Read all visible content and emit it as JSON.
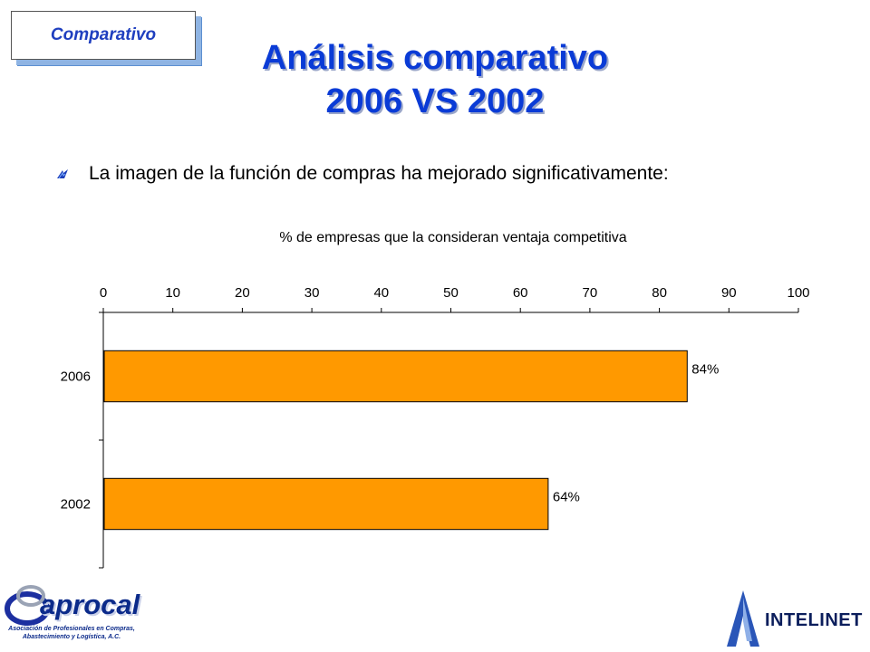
{
  "tag": {
    "label": "Comparativo"
  },
  "header": {
    "title_line1": "Análisis comparativo",
    "title_line2": "2006 VS 2002"
  },
  "bullet": {
    "text": "La imagen de la función de compras ha mejorado significativamente:"
  },
  "colors": {
    "title": "#0a3bd6",
    "bar": "#ff9900",
    "bar_border": "#000000"
  },
  "chart_data": {
    "type": "bar",
    "orientation": "horizontal",
    "title": "% de empresas que la consideran ventaja competitiva",
    "categories": [
      "2006",
      "2002"
    ],
    "values": [
      84,
      64
    ],
    "labels": [
      "84%",
      "64%"
    ],
    "xlim": [
      0,
      100
    ],
    "xticks": [
      0,
      10,
      20,
      30,
      40,
      50,
      60,
      70,
      80,
      90,
      100
    ],
    "x_axis_position": "top",
    "grid": false,
    "legend": "none"
  },
  "logos": {
    "left_name": "aprocal",
    "left_sub_line1": "Asociación de Profesionales en Compras,",
    "left_sub_line2": "Abastecimiento y Logística, A.C.",
    "right_name": "INTELINET"
  }
}
